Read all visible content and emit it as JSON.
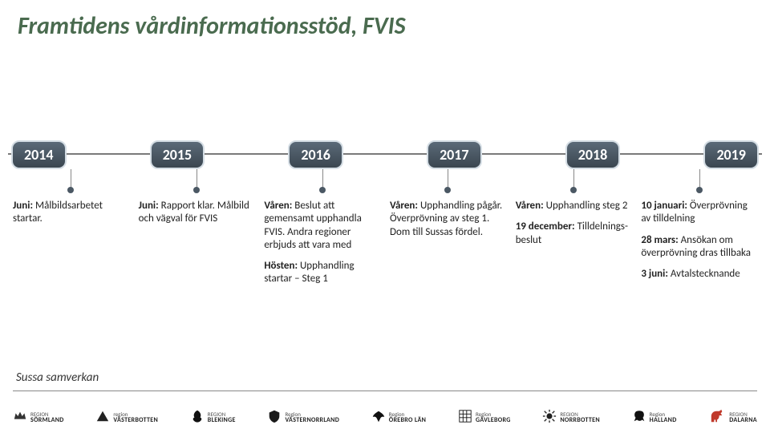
{
  "title": "Framtidens vårdinformationsstöd, FVIS",
  "title_color": "#4a6b4f",
  "axis_color": "#7a7a7a",
  "pill_bg_top": "#5b6a78",
  "pill_bg_bottom": "#3b4650",
  "pill_text_color": "#ffffff",
  "pill_border_color": "#d4dde4",
  "body_text_color": "#222222",
  "background_color": "#ffffff",
  "years": [
    {
      "year": "2014",
      "blocks": [
        {
          "html": "<b>Juni:</b> Målbildsarbetet startar."
        }
      ]
    },
    {
      "year": "2015",
      "blocks": [
        {
          "html": "<b>Juni:</b> Rapport klar. Målbild och vägval för FVIS"
        }
      ]
    },
    {
      "year": "2016",
      "blocks": [
        {
          "html": "<b>Våren:</b> Beslut att gemensamt upphandla FVIS. Andra regioner erbjuds att vara med"
        },
        {
          "html": "<b>Hösten:</b> Upphandling startar – Steg 1"
        }
      ]
    },
    {
      "year": "2017",
      "blocks": [
        {
          "html": "<b>Våren:</b> Upphandling pågår. Överprövning av steg 1. Dom till Sussas fördel."
        }
      ]
    },
    {
      "year": "2018",
      "blocks": [
        {
          "html": "<b>Våren:</b> Upphandling steg 2"
        },
        {
          "html": "<b>19 december:</b> Tilldelnings-beslut"
        }
      ]
    },
    {
      "year": "2019",
      "blocks": [
        {
          "html": "<b>10 januari:</b> Överprövning av tilldelning"
        },
        {
          "html": "<b>28 mars:</b> Ansökan om överprövning dras tillbaka"
        },
        {
          "html": "<b>3 juni:</b> Avtalstecknande"
        }
      ]
    }
  ],
  "footer_label": "Sussa samverkan",
  "logos": [
    {
      "name": "Region Sörmland",
      "line1": "REGION",
      "line2": "SÖRMLAND",
      "glyph": "crown",
      "color": "#333333"
    },
    {
      "name": "Region Västerbotten",
      "line1": "region",
      "line2": "västerbotten",
      "glyph": "triangle",
      "color": "#222222"
    },
    {
      "name": "Region Blekinge",
      "line1": "REGION",
      "line2": "BLEKINGE",
      "glyph": "oak",
      "color": "#111111"
    },
    {
      "name": "Region Västernorrland",
      "line1": "Region",
      "line2": "Västernorrland",
      "glyph": "shield",
      "color": "#1a1a1a"
    },
    {
      "name": "Region Örebro län",
      "line1": "Region",
      "line2": "Örebro län",
      "glyph": "eagle",
      "color": "#111111"
    },
    {
      "name": "Region Gävleborg",
      "line1": "Region",
      "line2": "Gävleborg",
      "glyph": "pattern",
      "color": "#111111"
    },
    {
      "name": "Region Norrbotten",
      "line1": "REGION",
      "line2": "NORRBOTTEN",
      "glyph": "sun",
      "color": "#222222"
    },
    {
      "name": "Region Halland",
      "line1": "Region",
      "line2": "Halland",
      "glyph": "lion",
      "color": "#111111"
    },
    {
      "name": "Region Dalarna",
      "line1": "REGION",
      "line2": "DALARNA",
      "glyph": "horse",
      "color": "#c0392b"
    }
  ]
}
